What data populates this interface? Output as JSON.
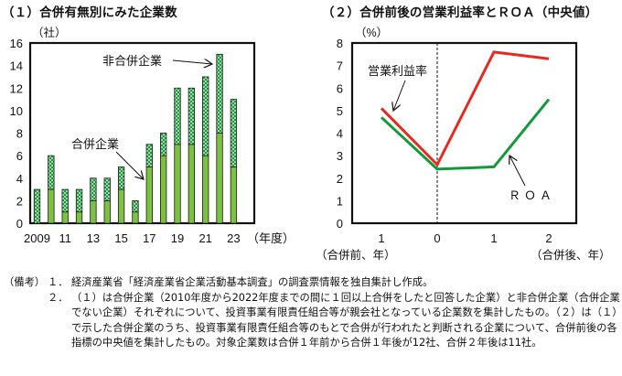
{
  "titles": {
    "left": "（１）合併有無別にみた企業数",
    "right": "（２）合併前後の営業利益率とＲＯＡ（中央値）"
  },
  "chart_data": [
    {
      "type": "bar",
      "stacked": true,
      "title": "（１）合併有無別にみた企業数",
      "ylabel": "（社）",
      "xlabel": "（年度）",
      "ylim": [
        0,
        16
      ],
      "yticks": [
        0,
        2,
        4,
        6,
        8,
        10,
        12,
        14,
        16
      ],
      "categories": [
        "2009",
        "2010",
        "2011",
        "2012",
        "2013",
        "2014",
        "2015",
        "2016",
        "2017",
        "2018",
        "2019",
        "2020",
        "2021",
        "2022",
        "2023"
      ],
      "xtick_labels": [
        "2009",
        "11",
        "13",
        "15",
        "17",
        "19",
        "21",
        "23"
      ],
      "series": [
        {
          "name": "合併企業",
          "color": "#7cc142",
          "values": [
            0,
            3,
            1,
            1,
            2,
            2,
            3,
            1,
            5,
            6,
            7,
            7,
            6,
            8,
            5
          ]
        },
        {
          "name": "非合併企業",
          "color": "#1e9a3c",
          "pattern": "dotted",
          "values": [
            3,
            3,
            2,
            2,
            2,
            2,
            2,
            1,
            2,
            2,
            5,
            5,
            7,
            7,
            6
          ]
        }
      ],
      "totals": [
        3,
        6,
        3,
        3,
        4,
        4,
        5,
        2,
        7,
        8,
        12,
        12,
        13,
        15,
        11
      ],
      "annotations": [
        {
          "text": "非合併企業",
          "points_to": "2022"
        },
        {
          "text": "合併企業",
          "points_to": "2017"
        }
      ],
      "grid": false
    },
    {
      "type": "line",
      "title": "（２）合併前後の営業利益率とＲＯＡ（中央値）",
      "ylabel": "（%）",
      "ylim": [
        0,
        8
      ],
      "yticks": [
        0,
        1,
        2,
        3,
        4,
        5,
        6,
        7,
        8
      ],
      "x": [
        -1,
        0,
        1,
        2
      ],
      "xtick_labels": [
        "1",
        "0",
        "1",
        "2"
      ],
      "x_sublabels": {
        "left": "（合併前、年）",
        "right": "（合併後、年）"
      },
      "series": [
        {
          "name": "営業利益率",
          "color": "#e8291c",
          "values": [
            5.1,
            2.6,
            7.6,
            7.3
          ]
        },
        {
          "name": "ROA",
          "color": "#119a3a",
          "values": [
            4.7,
            2.4,
            2.5,
            5.5
          ]
        }
      ],
      "annotations": [
        {
          "text": "営業利益率",
          "points_to": "営業利益率 at -1"
        },
        {
          "text": "ＲＯＡ",
          "points_to": "ROA between 1 and 2"
        }
      ],
      "vertical_dashed_line_at": 0,
      "grid": false
    }
  ],
  "notes": {
    "lead": "（備考）",
    "items": [
      {
        "num": "１．",
        "text": "経済産業省「経済産業省企業活動基本調査」の調査票情報を独自集計し作成。"
      },
      {
        "num": "２．",
        "text": "（１）は合併企業（2010年度から2022年度までの間に１回以上合併をしたと回答した企業）と非合併企業（合併企業でない企業）それぞれについて、投資事業有限責任組合等が親会社となっている企業数を集計したもの。（２）は（１）で示した合併企業のうち、投資事業有限責任組合等のもとで合併が行われたと判断される企業について、合併前後の各指標の中央値を集計したもの。対象企業数は合併１年前から合併１年後が12社、合併２年後は11社。"
      }
    ]
  }
}
